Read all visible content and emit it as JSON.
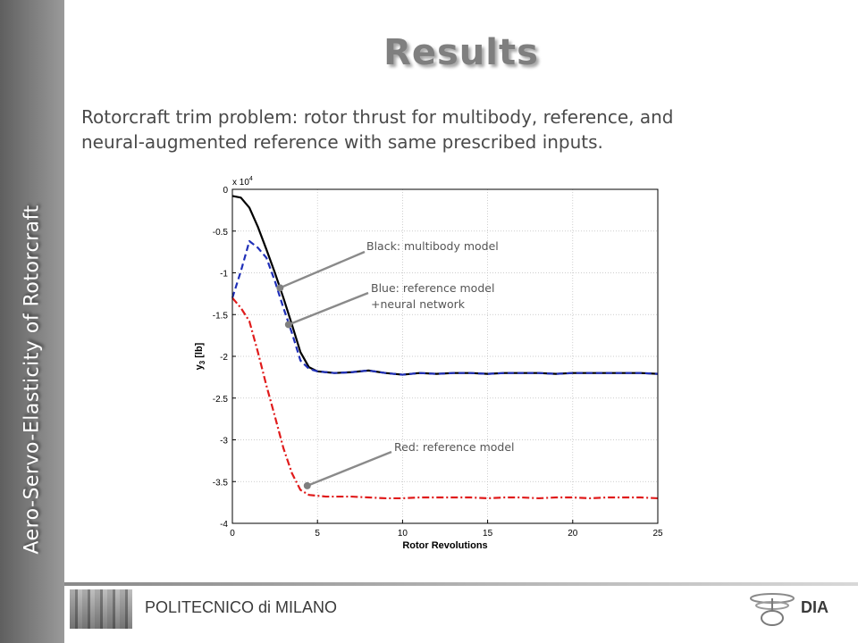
{
  "sidebar": {
    "text": "Aero-Servo-Elasticity of Rotorcraft"
  },
  "header": {
    "title": "Results",
    "subtitle_line1": "Rotorcraft trim problem: rotor thrust for multibody, reference, and",
    "subtitle_line2": "neural-augmented reference with same prescribed inputs."
  },
  "footer": {
    "institution": "POLITECNICO di MILANO",
    "department": "DIA"
  },
  "chart_data": {
    "type": "line",
    "xlabel": "Rotor Revolutions",
    "ylabel": "y",
    "ylabel_sub": "3",
    "ylabel_unit": "[lb]",
    "y_multiplier_base": "x 10",
    "y_multiplier_exp": "4",
    "xlim": [
      0,
      25
    ],
    "ylim": [
      -4,
      0
    ],
    "x_ticks": [
      0,
      5,
      10,
      15,
      20,
      25
    ],
    "y_ticks": [
      0,
      -0.5,
      -1,
      -1.5,
      -2,
      -2.5,
      -3,
      -3.5,
      -4
    ],
    "grid": true,
    "series": [
      {
        "key": "multibody",
        "color": "#000000",
        "dash": "",
        "x": [
          0,
          0.5,
          1,
          1.5,
          2,
          2.5,
          3,
          3.5,
          4,
          4.5,
          5,
          5.5,
          6,
          7,
          8,
          9,
          10,
          11,
          12,
          13,
          14,
          15,
          16,
          17,
          18,
          19,
          20,
          21,
          22,
          23,
          24,
          25
        ],
        "y": [
          -0.08,
          -0.1,
          -0.22,
          -0.45,
          -0.72,
          -1.0,
          -1.3,
          -1.62,
          -1.95,
          -2.13,
          -2.18,
          -2.19,
          -2.2,
          -2.19,
          -2.17,
          -2.2,
          -2.22,
          -2.2,
          -2.21,
          -2.2,
          -2.2,
          -2.21,
          -2.2,
          -2.2,
          -2.2,
          -2.21,
          -2.2,
          -2.2,
          -2.2,
          -2.2,
          -2.2,
          -2.21
        ]
      },
      {
        "key": "reference_neural",
        "color": "#1f2fb8",
        "dash": "7,4",
        "x": [
          0,
          0.5,
          1,
          1.5,
          2,
          2.5,
          3,
          3.5,
          4,
          4.5,
          5,
          5.5,
          6,
          7,
          8,
          9,
          10,
          11,
          12,
          13,
          14,
          15,
          16,
          17,
          18,
          19,
          20,
          21,
          22,
          23,
          24,
          25
        ],
        "y": [
          -1.3,
          -0.98,
          -0.62,
          -0.7,
          -0.82,
          -1.1,
          -1.42,
          -1.72,
          -2.05,
          -2.15,
          -2.18,
          -2.19,
          -2.2,
          -2.19,
          -2.17,
          -2.2,
          -2.22,
          -2.2,
          -2.21,
          -2.2,
          -2.2,
          -2.21,
          -2.2,
          -2.2,
          -2.2,
          -2.21,
          -2.2,
          -2.2,
          -2.2,
          -2.2,
          -2.2,
          -2.21
        ]
      },
      {
        "key": "reference",
        "color": "#e01b1b",
        "dash": "8,3,2,3",
        "x": [
          0,
          0.5,
          1,
          1.5,
          2,
          2.5,
          3,
          3.5,
          4,
          4.5,
          5,
          5.5,
          6,
          7,
          8,
          9,
          10,
          11,
          12,
          13,
          14,
          15,
          16,
          17,
          18,
          19,
          20,
          21,
          22,
          23,
          24,
          25
        ],
        "y": [
          -1.3,
          -1.42,
          -1.58,
          -1.95,
          -2.35,
          -2.72,
          -3.1,
          -3.4,
          -3.6,
          -3.66,
          -3.67,
          -3.68,
          -3.68,
          -3.68,
          -3.69,
          -3.7,
          -3.7,
          -3.69,
          -3.69,
          -3.69,
          -3.69,
          -3.7,
          -3.69,
          -3.69,
          -3.7,
          -3.69,
          -3.69,
          -3.7,
          -3.69,
          -3.69,
          -3.69,
          -3.7
        ]
      }
    ],
    "annotations": [
      {
        "key": "black",
        "line1": "Black: multibody model",
        "line2": "",
        "x": 2.8,
        "y": -1.18
      },
      {
        "key": "blue",
        "line1": "Blue: reference model",
        "line2": "+neural network",
        "x": 3.3,
        "y": -1.62
      },
      {
        "key": "red",
        "line1": "Red: reference model",
        "line2": "",
        "x": 4.4,
        "y": -3.55
      }
    ]
  }
}
